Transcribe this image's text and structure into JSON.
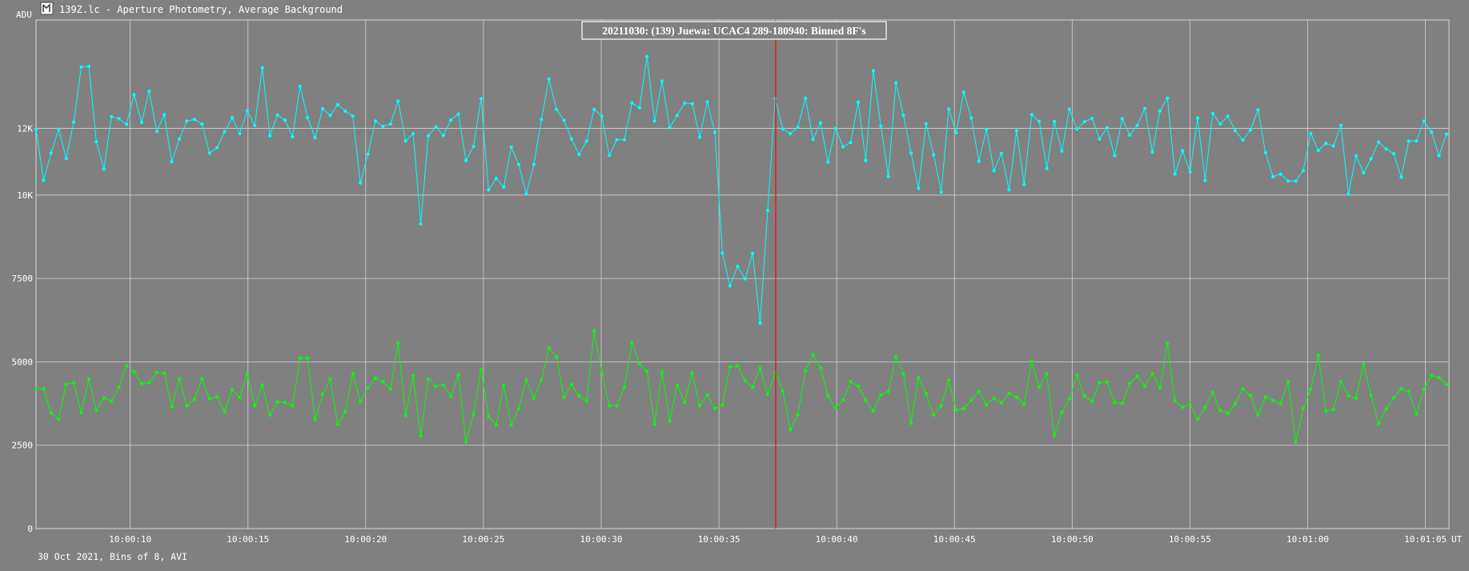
{
  "window": {
    "title": "139Z.lc - Aperture Photometry, Average Background",
    "icon": "lc-app-icon"
  },
  "chart_data": {
    "type": "line",
    "title": "20211030: (139) Juewa: UCAC4 289-180940: Binned 8F's",
    "ylabel": "ADU",
    "xlabel": "UT",
    "footer": "30 Oct 2021, Bins of 8, AVI",
    "xlim": [
      6.0,
      66.0
    ],
    "ylim": [
      0,
      15250
    ],
    "y_ticks": [
      {
        "v": 0,
        "label": "0"
      },
      {
        "v": 2500,
        "label": "2500"
      },
      {
        "v": 5000,
        "label": "5000"
      },
      {
        "v": 7500,
        "label": "7500"
      },
      {
        "v": 10000,
        "label": "10K"
      },
      {
        "v": 12000,
        "label": "12K"
      }
    ],
    "x_ticks": [
      {
        "v": 10,
        "label": "10:00:10"
      },
      {
        "v": 15,
        "label": "10:00:15"
      },
      {
        "v": 20,
        "label": "10:00:20"
      },
      {
        "v": 25,
        "label": "10:00:25"
      },
      {
        "v": 30,
        "label": "10:00:30"
      },
      {
        "v": 35,
        "label": "10:00:35"
      },
      {
        "v": 40,
        "label": "10:00:40"
      },
      {
        "v": 45,
        "label": "10:00:45"
      },
      {
        "v": 50,
        "label": "10:00:50"
      },
      {
        "v": 55,
        "label": "10:00:55"
      },
      {
        "v": 60,
        "label": "10:01:00"
      },
      {
        "v": 65,
        "label": "10:01:05"
      }
    ],
    "grid": true,
    "marker_x": 37.41,
    "x_start": 6.0,
    "x_step": 0.3203,
    "series": [
      {
        "name": "",
        "color": "#00ffff",
        "values": [
          11980,
          10440,
          11260,
          11980,
          11100,
          12190,
          13840,
          13860,
          11600,
          10780,
          12350,
          12290,
          12120,
          13010,
          12180,
          13120,
          11910,
          12410,
          11000,
          11680,
          12220,
          12270,
          12130,
          11260,
          11420,
          11900,
          12320,
          11840,
          12530,
          12090,
          13820,
          11780,
          12400,
          12250,
          11750,
          13260,
          12320,
          11720,
          12590,
          12390,
          12710,
          12520,
          12370,
          10360,
          11230,
          12220,
          12060,
          12130,
          12820,
          11620,
          11840,
          9140,
          11780,
          12040,
          11790,
          12250,
          12430,
          11040,
          11460,
          12890,
          10150,
          10500,
          10240,
          11440,
          10920,
          10040,
          10920,
          12270,
          13480,
          12570,
          12240,
          11680,
          11220,
          11620,
          12570,
          12370,
          11190,
          11660,
          11660,
          12760,
          12620,
          14150,
          12220,
          13420,
          12020,
          12390,
          12760,
          12740,
          11740,
          12800,
          11880,
          8260,
          7280,
          7860,
          7490,
          8250,
          6160,
          9540,
          12890,
          11980,
          11840,
          12030,
          12910,
          11670,
          12170,
          10990,
          12000,
          11450,
          11580,
          12790,
          11040,
          13730,
          12070,
          10560,
          13370,
          12390,
          11260,
          10200,
          12140,
          11210,
          10090,
          12580,
          11870,
          13090,
          12310,
          11010,
          11970,
          10730,
          11250,
          10160,
          11930,
          10320,
          12410,
          12210,
          10800,
          12210,
          11320,
          12580,
          11980,
          12200,
          12300,
          11680,
          12020,
          11180,
          12290,
          11800,
          12090,
          12600,
          11290,
          12520,
          12910,
          10630,
          11330,
          10690,
          12310,
          10440,
          12450,
          12130,
          12370,
          11930,
          11650,
          11950,
          12560,
          11270,
          10550,
          10630,
          10420,
          10420,
          10730,
          11850,
          11340,
          11550,
          11470,
          12090,
          10030,
          11180,
          10670,
          11090,
          11590,
          11380,
          11240,
          10540,
          11620,
          11620,
          12220,
          11890,
          11180,
          11830
        ]
      },
      {
        "name": "",
        "color": "#00ff00",
        "values": [
          4190,
          4190,
          3470,
          3280,
          4330,
          4370,
          3480,
          4480,
          3540,
          3920,
          3820,
          4240,
          4880,
          4710,
          4350,
          4370,
          4680,
          4660,
          3650,
          4490,
          3680,
          3880,
          4490,
          3900,
          3950,
          3510,
          4170,
          3930,
          4640,
          3680,
          4310,
          3400,
          3800,
          3780,
          3680,
          5110,
          5110,
          3270,
          4030,
          4480,
          3130,
          3500,
          4650,
          3810,
          4230,
          4510,
          4400,
          4190,
          5580,
          3390,
          4580,
          2780,
          4480,
          4260,
          4310,
          3960,
          4610,
          2600,
          3430,
          4760,
          3370,
          3110,
          4300,
          3110,
          3600,
          4460,
          3910,
          4460,
          5420,
          5140,
          3940,
          4320,
          3980,
          3830,
          5920,
          4670,
          3680,
          3680,
          4240,
          5580,
          4940,
          4720,
          3130,
          4700,
          3230,
          4300,
          3790,
          4670,
          3690,
          4010,
          3600,
          3710,
          4850,
          4880,
          4440,
          4240,
          4810,
          4020,
          4680,
          4130,
          2960,
          3410,
          4730,
          5220,
          4830,
          3980,
          3620,
          3860,
          4410,
          4270,
          3850,
          3530,
          4010,
          4110,
          5150,
          4640,
          3160,
          4520,
          4050,
          3400,
          3680,
          4450,
          3560,
          3600,
          3850,
          4110,
          3710,
          3910,
          3770,
          4060,
          3940,
          3730,
          5020,
          4240,
          4640,
          2790,
          3480,
          3880,
          4610,
          3980,
          3820,
          4380,
          4390,
          3780,
          3750,
          4350,
          4570,
          4280,
          4650,
          4220,
          5560,
          3840,
          3640,
          3720,
          3280,
          3640,
          4090,
          3540,
          3460,
          3750,
          4190,
          3990,
          3400,
          3950,
          3840,
          3750,
          4400,
          2590,
          3600,
          4180,
          5190,
          3520,
          3570,
          4410,
          3980,
          3910,
          4930,
          3990,
          3150,
          3590,
          3920,
          4200,
          4110,
          3440,
          4180,
          4590,
          4530,
          4320
        ]
      }
    ]
  }
}
